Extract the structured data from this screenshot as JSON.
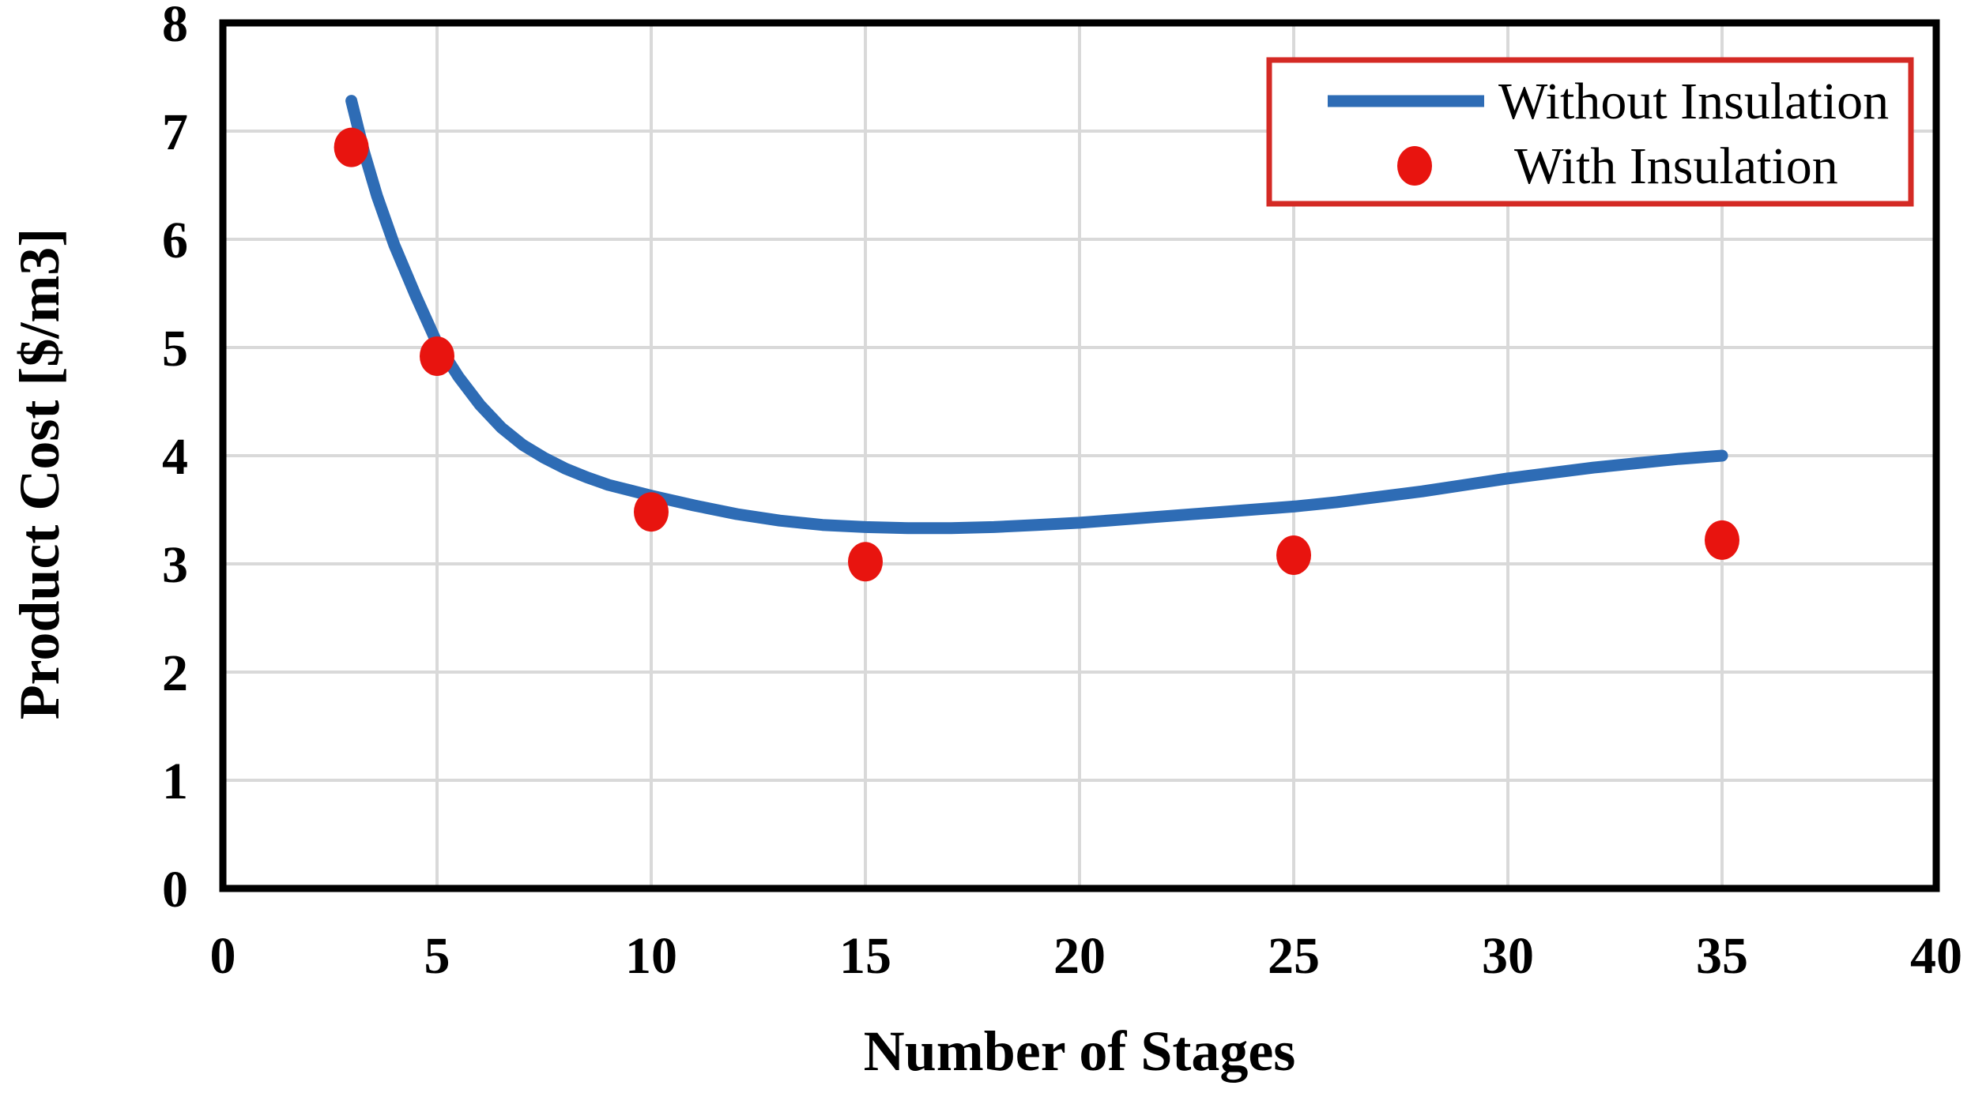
{
  "chart_data": {
    "type": "line",
    "title": "",
    "xlabel": "Number of Stages",
    "ylabel": "Product Cost [$/m3]",
    "xlim": [
      0,
      40
    ],
    "ylim": [
      0,
      8
    ],
    "xticks": [
      0,
      5,
      10,
      15,
      20,
      25,
      30,
      35,
      40
    ],
    "yticks": [
      0,
      1,
      2,
      3,
      4,
      5,
      6,
      7,
      8
    ],
    "grid": true,
    "legend_position": "top-right",
    "series": [
      {
        "name": "Without Insulation",
        "style": "line",
        "color": "#2e6cb5",
        "points": [
          [
            3.0,
            7.28
          ],
          [
            3.3,
            6.8
          ],
          [
            3.6,
            6.4
          ],
          [
            4.0,
            5.95
          ],
          [
            4.5,
            5.48
          ],
          [
            5.0,
            5.04
          ],
          [
            5.5,
            4.73
          ],
          [
            6.0,
            4.47
          ],
          [
            6.5,
            4.26
          ],
          [
            7.0,
            4.1
          ],
          [
            7.5,
            3.98
          ],
          [
            8.0,
            3.88
          ],
          [
            8.5,
            3.8
          ],
          [
            9.0,
            3.73
          ],
          [
            9.5,
            3.68
          ],
          [
            10,
            3.63
          ],
          [
            11,
            3.54
          ],
          [
            12,
            3.46
          ],
          [
            13,
            3.4
          ],
          [
            14,
            3.36
          ],
          [
            15,
            3.34
          ],
          [
            16,
            3.33
          ],
          [
            17,
            3.33
          ],
          [
            18,
            3.34
          ],
          [
            19,
            3.36
          ],
          [
            20,
            3.38
          ],
          [
            21,
            3.41
          ],
          [
            22,
            3.44
          ],
          [
            23,
            3.47
          ],
          [
            24,
            3.5
          ],
          [
            25,
            3.53
          ],
          [
            26,
            3.57
          ],
          [
            27,
            3.62
          ],
          [
            28,
            3.67
          ],
          [
            29,
            3.73
          ],
          [
            30,
            3.79
          ],
          [
            31,
            3.84
          ],
          [
            32,
            3.89
          ],
          [
            33,
            3.93
          ],
          [
            34,
            3.97
          ],
          [
            35,
            4.0
          ]
        ]
      },
      {
        "name": "With Insulation",
        "style": "scatter",
        "color": "#e8140f",
        "points": [
          [
            3,
            6.85
          ],
          [
            5,
            4.92
          ],
          [
            10,
            3.48
          ],
          [
            15,
            3.02
          ],
          [
            25,
            3.08
          ],
          [
            35,
            3.22
          ]
        ]
      }
    ]
  },
  "legend": {
    "border_color": "#d42a24",
    "items": [
      "Without Insulation",
      "With Insulation"
    ]
  },
  "colors": {
    "grid": "#d9d9d9",
    "axis": "#000000",
    "background": "#ffffff",
    "line_series": "#2e6cb5",
    "scatter_series": "#e8140f",
    "legend_border": "#d42a24"
  }
}
